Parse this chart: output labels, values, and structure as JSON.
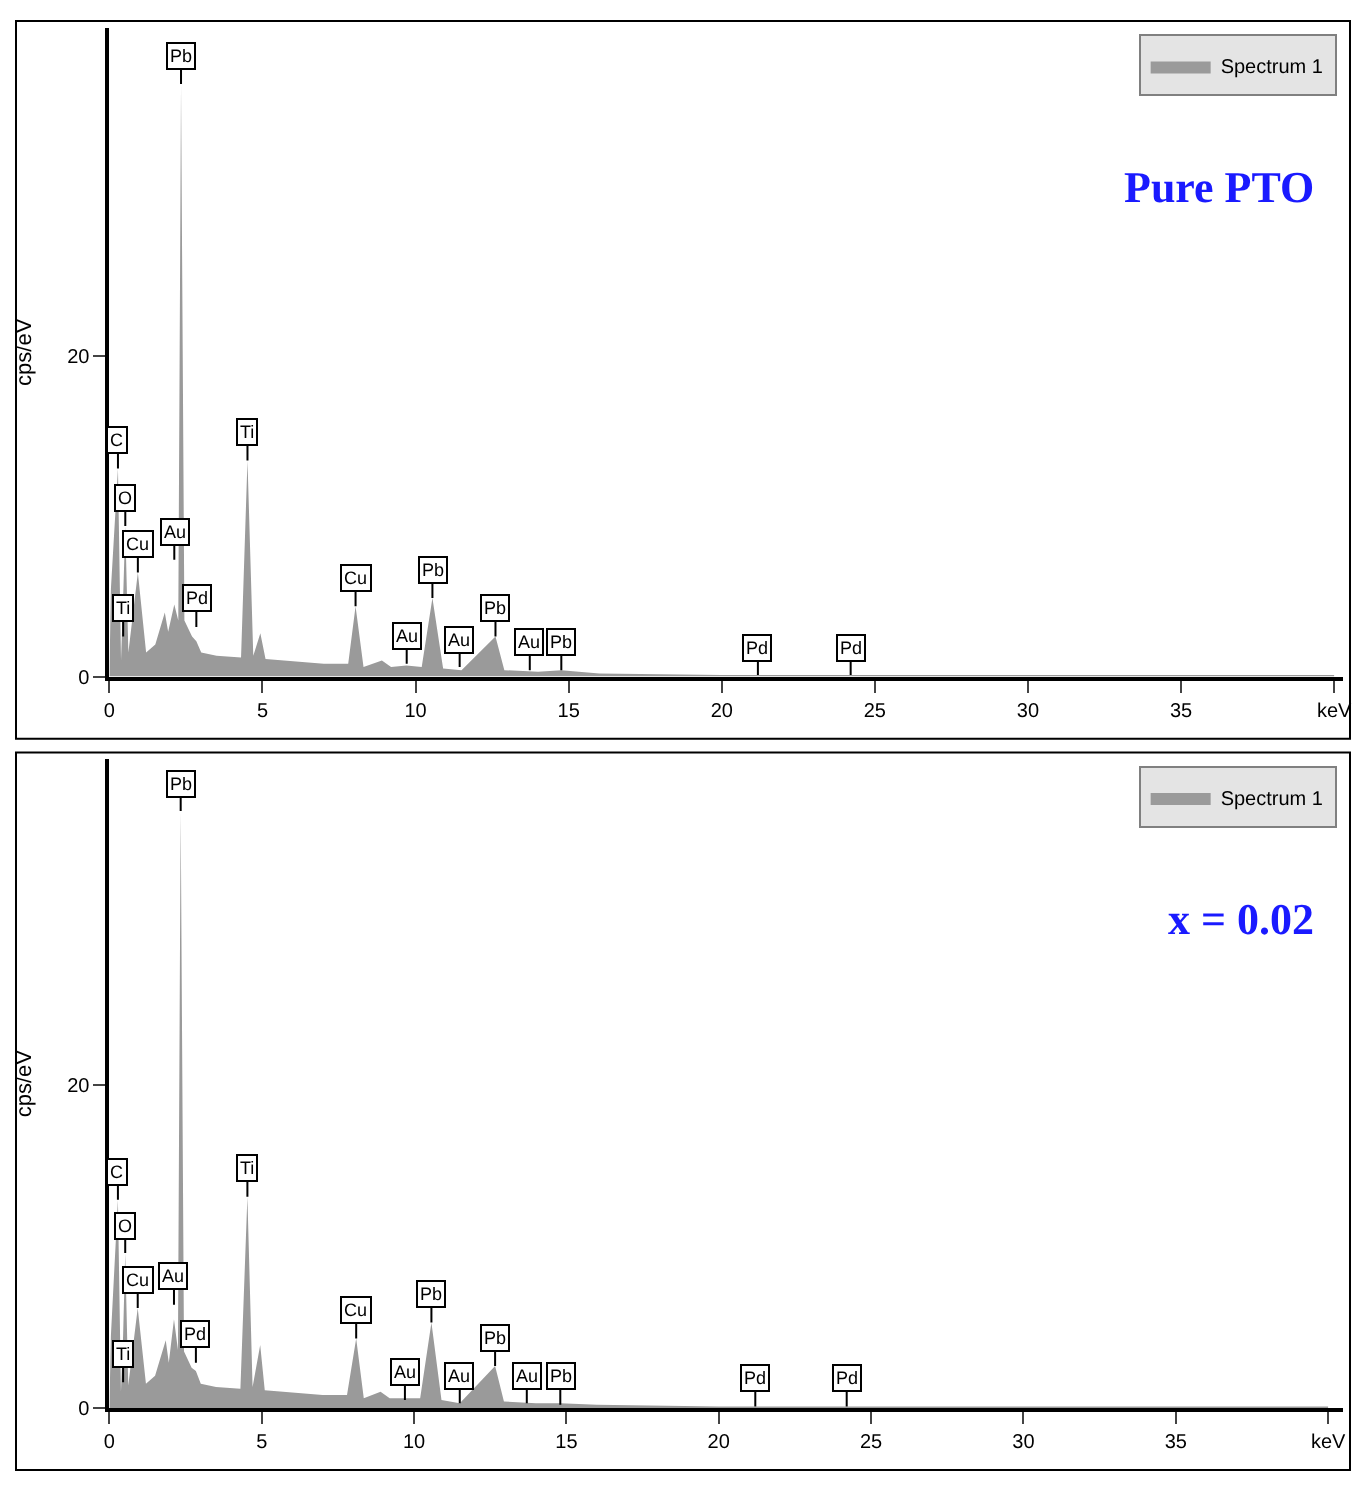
{
  "chart_data": [
    {
      "type": "area",
      "ylabel": "cps/eV",
      "legend": "top right",
      "xlim": [
        0,
        40.3
      ],
      "ylim": [
        0,
        40.5
      ],
      "xticks": [
        0,
        5,
        10,
        15,
        20,
        25,
        30,
        35,
        {
          "value": 40,
          "label": "keV"
        }
      ],
      "yticks": [
        0,
        20
      ],
      "x": [
        0,
        0.05,
        0.28,
        0.38,
        0.45,
        0.52,
        0.62,
        0.93,
        1.2,
        1.5,
        1.81,
        1.92,
        2.12,
        2.25,
        2.34,
        2.45,
        2.7,
        2.84,
        3.0,
        3.5,
        4.3,
        4.51,
        4.7,
        4.93,
        5.1,
        7.0,
        7.8,
        8.04,
        8.3,
        8.9,
        9.2,
        9.7,
        10.2,
        10.55,
        10.9,
        11.5,
        12.61,
        12.9,
        14.0,
        14.76,
        16,
        20,
        30,
        40
      ],
      "series": [
        {
          "name": "Spectrum 1",
          "color": "#9a9a9a",
          "values": [
            0,
            5.5,
            13,
            1,
            5,
            9.4,
            1.5,
            6.5,
            1.5,
            2,
            4,
            2.8,
            4.5,
            3.5,
            37,
            3.5,
            2.5,
            2.2,
            1.5,
            1.3,
            1.2,
            13.5,
            1.3,
            2.7,
            1.1,
            0.8,
            0.8,
            4.4,
            0.6,
            1.0,
            0.6,
            0.7,
            0.6,
            4.9,
            0.5,
            0.4,
            2.5,
            0.4,
            0.3,
            0.4,
            0.2,
            0.1,
            0.1,
            0.1
          ]
        }
      ],
      "annotations": [
        "Pure PTO",
        {
          "text": "Pb",
          "x": 2.34,
          "y": 37
        },
        {
          "text": "C",
          "x": 0.28,
          "y": 13
        },
        {
          "text": "O",
          "x": 0.52,
          "y": 9.4
        },
        {
          "text": "Cu",
          "x": 0.93,
          "y": 6.5
        },
        {
          "text": "Ti",
          "x": 0.45,
          "y": 2.5
        },
        {
          "text": "Au",
          "x": 2.12,
          "y": 7.3
        },
        {
          "text": "Pd",
          "x": 2.84,
          "y": 3.1
        },
        {
          "text": "Ti",
          "x": 4.51,
          "y": 13.5
        },
        {
          "text": "Cu",
          "x": 8.04,
          "y": 4.4
        },
        {
          "text": "Au",
          "x": 9.71,
          "y": 0.8
        },
        {
          "text": "Pb",
          "x": 10.55,
          "y": 4.9
        },
        {
          "text": "Au",
          "x": 11.44,
          "y": 0.6
        },
        {
          "text": "Pb",
          "x": 12.61,
          "y": 2.5
        },
        {
          "text": "Au",
          "x": 13.73,
          "y": 0.4
        },
        {
          "text": "Pb",
          "x": 14.76,
          "y": 0.4
        },
        {
          "text": "Pd",
          "x": 21.18,
          "y": 0.1
        },
        {
          "text": "Pd",
          "x": 24.21,
          "y": 0.1
        }
      ]
    },
    {
      "type": "area",
      "ylabel": "cps/eV",
      "legend": "top right",
      "xlim": [
        0,
        40.5
      ],
      "ylim": [
        0,
        40.2
      ],
      "xticks": [
        0,
        5,
        10,
        15,
        20,
        25,
        30,
        35,
        {
          "value": 40,
          "label": "keV"
        }
      ],
      "yticks": [
        0,
        20
      ],
      "x": [
        0,
        0.05,
        0.28,
        0.38,
        0.45,
        0.52,
        0.62,
        0.93,
        1.2,
        1.5,
        1.85,
        1.95,
        2.12,
        2.25,
        2.34,
        2.45,
        2.7,
        2.84,
        3.0,
        3.5,
        4.3,
        4.53,
        4.7,
        4.95,
        5.1,
        7.0,
        7.8,
        8.1,
        8.35,
        8.9,
        9.2,
        9.7,
        10.2,
        10.57,
        10.9,
        11.5,
        12.66,
        12.95,
        14.0,
        14.8,
        16,
        20,
        30,
        40
      ],
      "series": [
        {
          "name": "Spectrum 1",
          "color": "#9a9a9a",
          "values": [
            0,
            4.5,
            12.9,
            1,
            4.5,
            9.6,
            1.4,
            6.2,
            1.5,
            2,
            4.2,
            2.8,
            5.5,
            3.6,
            37,
            3.5,
            2.5,
            2.3,
            1.5,
            1.3,
            1.2,
            13.1,
            1.3,
            3.9,
            1.1,
            0.8,
            0.8,
            4.3,
            0.6,
            1.0,
            0.6,
            0.6,
            0.6,
            5.3,
            0.5,
            0.3,
            2.6,
            0.4,
            0.3,
            0.3,
            0.2,
            0.1,
            0.1,
            0.1
          ]
        }
      ],
      "annotations": [
        "x = 0.02",
        {
          "text": "Pb",
          "x": 2.34,
          "y": 37
        },
        {
          "text": "C",
          "x": 0.28,
          "y": 12.9
        },
        {
          "text": "O",
          "x": 0.52,
          "y": 9.6
        },
        {
          "text": "Cu",
          "x": 0.93,
          "y": 6.2
        },
        {
          "text": "Ti",
          "x": 0.45,
          "y": 1.6
        },
        {
          "text": "Au",
          "x": 2.12,
          "y": 6.4
        },
        {
          "text": "Pd",
          "x": 2.84,
          "y": 2.8
        },
        {
          "text": "Ti",
          "x": 4.53,
          "y": 13.1
        },
        {
          "text": "Cu",
          "x": 8.1,
          "y": 4.3
        },
        {
          "text": "Au",
          "x": 9.7,
          "y": 0.5
        },
        {
          "text": "Pb",
          "x": 10.57,
          "y": 5.3
        },
        {
          "text": "Au",
          "x": 11.5,
          "y": 0.3
        },
        {
          "text": "Pb",
          "x": 12.66,
          "y": 2.6
        },
        {
          "text": "Au",
          "x": 13.7,
          "y": 0.3
        },
        {
          "text": "Pb",
          "x": 14.8,
          "y": 0.2
        },
        {
          "text": "Pd",
          "x": 21.2,
          "y": 0.1
        },
        {
          "text": "Pd",
          "x": 24.2,
          "y": 0.1
        }
      ]
    }
  ]
}
